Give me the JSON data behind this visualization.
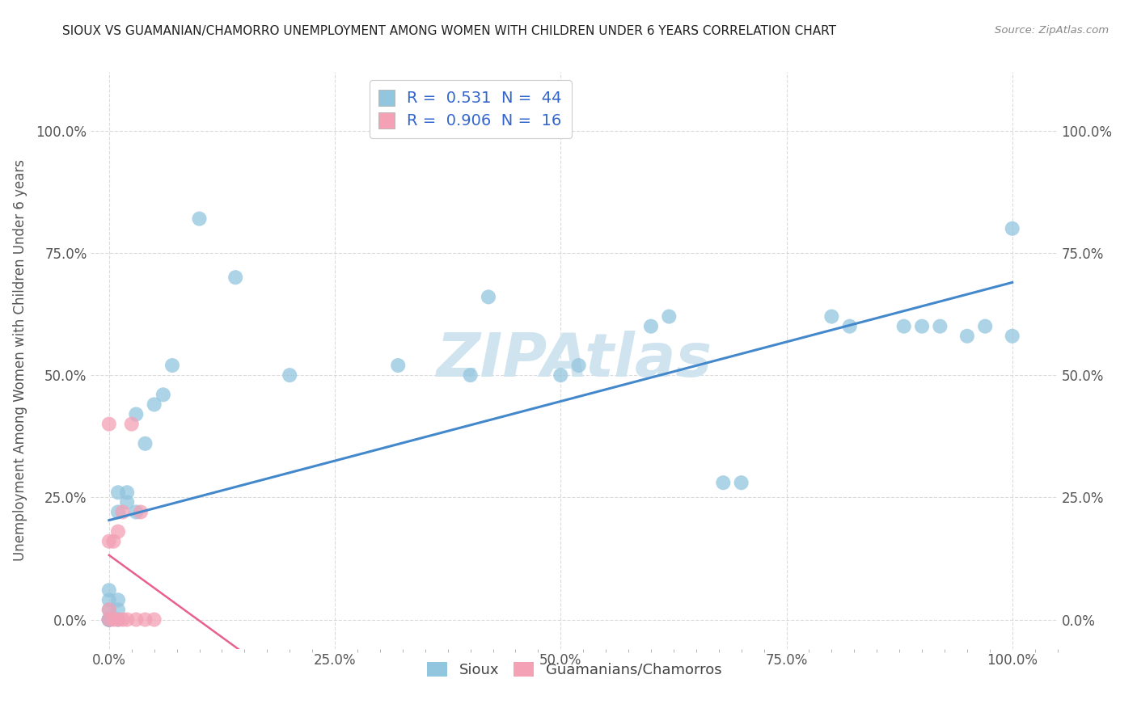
{
  "title": "SIOUX VS GUAMANIAN/CHAMORRO UNEMPLOYMENT AMONG WOMEN WITH CHILDREN UNDER 6 YEARS CORRELATION CHART",
  "source": "Source: ZipAtlas.com",
  "ylabel": "Unemployment Among Women with Children Under 6 years",
  "xlim": [
    -0.02,
    1.05
  ],
  "ylim": [
    -0.06,
    1.12
  ],
  "sioux_R": "0.531",
  "sioux_N": "44",
  "guamanian_R": "0.906",
  "guamanian_N": "16",
  "sioux_color": "#92c5de",
  "guamanian_color": "#f4a0b5",
  "sioux_line_color": "#4488cc",
  "guamanian_line_color": "#e86090",
  "legend_label_sioux": "Sioux",
  "legend_label_guamanian": "Guamanians/Chamorros",
  "watermark_color": "#d0e4f0",
  "background_color": "#ffffff",
  "label_color": "#3366cc",
  "tick_color": "#555555",
  "sioux_x": [
    0.0,
    0.0,
    0.0,
    0.0,
    0.0,
    0.0,
    0.0,
    0.0,
    0.0,
    0.0,
    0.01,
    0.01,
    0.01,
    0.01,
    0.01,
    0.02,
    0.02,
    0.03,
    0.03,
    0.04,
    0.05,
    0.06,
    0.07,
    0.1,
    0.14,
    0.2,
    0.32,
    0.4,
    0.42,
    0.5,
    0.52,
    0.6,
    0.62,
    0.68,
    0.7,
    0.8,
    0.82,
    0.88,
    0.9,
    0.92,
    0.95,
    0.97,
    1.0,
    1.0
  ],
  "sioux_y": [
    0.0,
    0.0,
    0.0,
    0.0,
    0.0,
    0.0,
    0.0,
    0.02,
    0.04,
    0.06,
    0.0,
    0.02,
    0.04,
    0.22,
    0.26,
    0.24,
    0.26,
    0.22,
    0.42,
    0.36,
    0.44,
    0.46,
    0.52,
    0.82,
    0.7,
    0.5,
    0.52,
    0.5,
    0.66,
    0.5,
    0.52,
    0.6,
    0.62,
    0.28,
    0.28,
    0.62,
    0.6,
    0.6,
    0.6,
    0.6,
    0.58,
    0.6,
    0.58,
    0.8
  ],
  "guamanian_x": [
    0.0,
    0.0,
    0.0,
    0.0,
    0.005,
    0.005,
    0.01,
    0.01,
    0.015,
    0.015,
    0.02,
    0.025,
    0.03,
    0.035,
    0.04,
    0.05
  ],
  "guamanian_y": [
    0.0,
    0.02,
    0.16,
    0.4,
    0.0,
    0.16,
    0.0,
    0.18,
    0.0,
    0.22,
    0.0,
    0.4,
    0.0,
    0.22,
    0.0,
    0.0
  ]
}
